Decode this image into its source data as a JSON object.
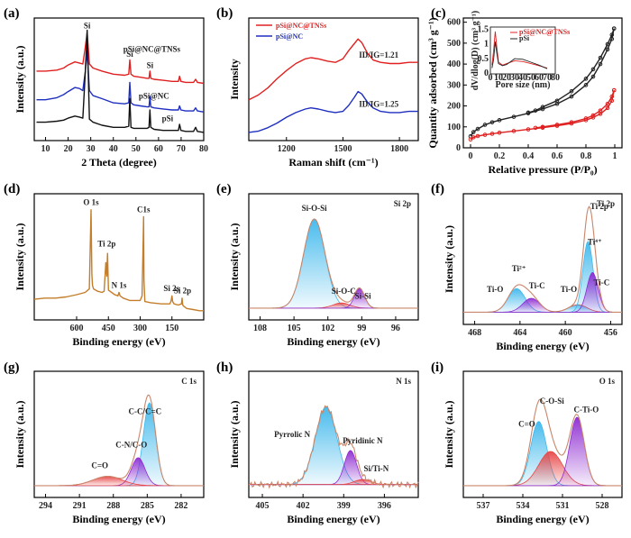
{
  "chart_data": [
    {
      "id": "a",
      "type": "line",
      "panel_label": "(a)",
      "xlabel": "2 Theta (degree)",
      "ylabel": "Intensity (a.u.)",
      "xlim": [
        5,
        80
      ],
      "xticks": [
        10,
        20,
        30,
        40,
        50,
        60,
        70,
        80
      ],
      "x": [
        6,
        10,
        15,
        18,
        20,
        23,
        25,
        26.5,
        27.6,
        28.4,
        29.4,
        31,
        35,
        40,
        45,
        46.8,
        47.3,
        47.8,
        49,
        52,
        55,
        55.8,
        56.2,
        56.6,
        58,
        62,
        66,
        68.8,
        69.3,
        69.9,
        72,
        75.5,
        76.4,
        77.2,
        80
      ],
      "series": [
        {
          "name": "pSi@NC@TNSs",
          "color": "#e02020",
          "values": [
            0.6,
            0.6,
            0.61,
            0.63,
            0.66,
            0.69,
            0.68,
            0.67,
            0.84,
            0.98,
            0.67,
            0.63,
            0.6,
            0.57,
            0.56,
            0.57,
            0.71,
            0.57,
            0.55,
            0.54,
            0.53,
            0.53,
            0.6,
            0.53,
            0.52,
            0.51,
            0.5,
            0.5,
            0.55,
            0.5,
            0.49,
            0.49,
            0.52,
            0.49,
            0.48
          ]
        },
        {
          "name": "pSi@NC",
          "color": "#1f2fbf",
          "values": [
            0.32,
            0.32,
            0.34,
            0.37,
            0.4,
            0.44,
            0.43,
            0.41,
            0.6,
            0.8,
            0.41,
            0.36,
            0.33,
            0.29,
            0.28,
            0.29,
            0.49,
            0.29,
            0.27,
            0.26,
            0.25,
            0.25,
            0.35,
            0.25,
            0.24,
            0.23,
            0.22,
            0.22,
            0.26,
            0.22,
            0.21,
            0.21,
            0.24,
            0.21,
            0.2
          ]
        },
        {
          "name": "pSi",
          "color": "#111111",
          "values": [
            0.1,
            0.1,
            0.11,
            0.12,
            0.14,
            0.16,
            0.15,
            0.14,
            0.6,
            1.0,
            0.13,
            0.1,
            0.07,
            0.05,
            0.05,
            0.06,
            0.33,
            0.05,
            0.04,
            0.04,
            0.04,
            0.05,
            0.22,
            0.05,
            0.03,
            0.02,
            0.02,
            0.02,
            0.08,
            0.02,
            0.01,
            0.01,
            0.05,
            0.01,
            0.0
          ]
        }
      ],
      "annotations": [
        {
          "text": "Si",
          "x": 28.4,
          "y": 1.02
        },
        {
          "text": "Si",
          "x": 47.3,
          "y": 0.74
        },
        {
          "text": "Si",
          "x": 56.2,
          "y": 0.63
        },
        {
          "text": "pSi@NC@TNSs",
          "x": 57,
          "y": 0.79
        },
        {
          "text": "pSi@NC",
          "x": 58,
          "y": 0.33
        },
        {
          "text": "pSi",
          "x": 64,
          "y": 0.11
        }
      ]
    },
    {
      "id": "b",
      "type": "line",
      "panel_label": "(b)",
      "xlabel": "Raman shift (cm⁻¹)",
      "ylabel": "Intensity",
      "xlim": [
        1000,
        1900
      ],
      "xticks": [
        1200,
        1500,
        1800
      ],
      "reversed": true,
      "x": [
        1000,
        1050,
        1100,
        1150,
        1200,
        1250,
        1300,
        1330,
        1370,
        1420,
        1460,
        1500,
        1530,
        1560,
        1580,
        1600,
        1630,
        1660,
        1700,
        1750,
        1800,
        1850,
        1900
      ],
      "series": [
        {
          "name": "pSi@NC@TNSs",
          "color": "#e02020",
          "values": [
            0.3,
            0.34,
            0.4,
            0.48,
            0.55,
            0.61,
            0.65,
            0.66,
            0.65,
            0.63,
            0.62,
            0.65,
            0.72,
            0.78,
            0.82,
            0.79,
            0.7,
            0.64,
            0.62,
            0.61,
            0.61,
            0.62,
            0.62
          ]
        },
        {
          "name": "pSi@NC",
          "color": "#1f2fbf",
          "values": [
            0.02,
            0.03,
            0.06,
            0.1,
            0.15,
            0.19,
            0.22,
            0.23,
            0.22,
            0.2,
            0.19,
            0.2,
            0.25,
            0.32,
            0.37,
            0.35,
            0.28,
            0.23,
            0.2,
            0.19,
            0.19,
            0.2,
            0.2
          ]
        }
      ],
      "legend": [
        {
          "name": "pSi@NC@TNSs",
          "color": "#e02020"
        },
        {
          "name": "pSi@NC",
          "color": "#1f2fbf"
        }
      ],
      "annotations": [
        {
          "text": "I",
          "x": 1690,
          "y": 0.66,
          "ratio": "I_D/I_G=1.21"
        },
        {
          "text": "I",
          "x": 1690,
          "y": 0.24,
          "ratio": "I_D/I_G=1.25"
        }
      ],
      "ratio_labels": [
        "ID/IG=1.21",
        "ID/IG=1.25"
      ]
    },
    {
      "id": "c",
      "type": "line",
      "panel_label": "(c)",
      "xlabel": "Relative pressure (P/P₀)",
      "ylabel": "Quantity adsorbed (cm³ g⁻¹)",
      "xlim": [
        -0.05,
        1.05
      ],
      "ylim": [
        0,
        620
      ],
      "xticks": [
        0.0,
        0.2,
        0.4,
        0.6,
        0.8,
        1.0
      ],
      "yticks": [
        0,
        100,
        200,
        300,
        400,
        500,
        600
      ],
      "series": [
        {
          "name": "pSi (adsorption)",
          "color": "#222222",
          "x": [
            0.0,
            0.02,
            0.05,
            0.1,
            0.15,
            0.2,
            0.3,
            0.4,
            0.5,
            0.6,
            0.7,
            0.8,
            0.85,
            0.9,
            0.95,
            0.98,
            0.995
          ],
          "values": [
            55,
            75,
            90,
            110,
            122,
            132,
            148,
            165,
            185,
            210,
            245,
            300,
            340,
            400,
            470,
            520,
            570
          ]
        },
        {
          "name": "pSi (desorption)",
          "color": "#222222",
          "x": [
            0.995,
            0.98,
            0.95,
            0.9,
            0.85,
            0.8,
            0.7,
            0.6,
            0.5,
            0.45,
            0.4
          ],
          "values": [
            570,
            540,
            495,
            430,
            375,
            330,
            270,
            225,
            195,
            178,
            168
          ]
        },
        {
          "name": "pSi@NC@TNSs (adsorption)",
          "color": "#e02020",
          "x": [
            0.0,
            0.02,
            0.05,
            0.1,
            0.15,
            0.2,
            0.3,
            0.4,
            0.5,
            0.6,
            0.7,
            0.8,
            0.85,
            0.9,
            0.95,
            0.98,
            0.995
          ],
          "values": [
            40,
            50,
            56,
            62,
            67,
            72,
            80,
            88,
            96,
            105,
            116,
            132,
            145,
            162,
            190,
            225,
            275
          ]
        },
        {
          "name": "pSi@NC@TNSs (desorption)",
          "color": "#e02020",
          "x": [
            0.995,
            0.98,
            0.95,
            0.9,
            0.85,
            0.8,
            0.7,
            0.6,
            0.5,
            0.45
          ],
          "values": [
            275,
            245,
            210,
            178,
            155,
            140,
            122,
            110,
            100,
            95
          ]
        }
      ],
      "inset": {
        "type": "line",
        "xlabel": "Pore size (nm)",
        "ylabel": "dV/dlog(D) (cm³ g⁻¹)",
        "xlim": [
          0,
          80
        ],
        "ylim": [
          0,
          1.6
        ],
        "xticks": [
          0,
          10,
          20,
          30,
          40,
          50,
          60,
          70,
          80
        ],
        "yticks": [
          0.0,
          0.5,
          1.0,
          1.5
        ],
        "legend": [
          {
            "name": "pSi@NC@TNSs",
            "color": "#e02020"
          },
          {
            "name": "pSi",
            "color": "#222222"
          }
        ],
        "series": [
          {
            "name": "pSi@NC@TNSs",
            "color": "#e02020",
            "x": [
              2,
              4,
              6,
              8,
              10,
              15,
              20,
              30,
              40,
              50,
              60,
              70
            ],
            "values": [
              0.3,
              0.8,
              1.45,
              0.9,
              0.4,
              0.3,
              0.35,
              0.45,
              0.42,
              0.35,
              0.28,
              0.2
            ]
          },
          {
            "name": "pSi",
            "color": "#222222",
            "x": [
              2,
              4,
              6,
              8,
              10,
              15,
              20,
              30,
              40,
              50,
              60,
              70
            ],
            "values": [
              0.2,
              0.5,
              1.1,
              0.7,
              0.35,
              0.28,
              0.32,
              0.52,
              0.5,
              0.4,
              0.3,
              0.18
            ]
          }
        ]
      }
    },
    {
      "id": "d",
      "type": "line",
      "panel_label": "(d)",
      "xlabel": "Binding energy (eV)",
      "ylabel": "Intensity (a.u.)",
      "xlim": [
        800,
        0
      ],
      "xticks": [
        600,
        450,
        300,
        150
      ],
      "series": [
        {
          "name": "survey",
          "color": "#c47e2a",
          "x": [
            800,
            750,
            700,
            650,
            600,
            560,
            540,
            532,
            528,
            525,
            520,
            500,
            480,
            470,
            462,
            458,
            454,
            450,
            420,
            405,
            400,
            395,
            380,
            350,
            300,
            291,
            286,
            284,
            282,
            278,
            250,
            200,
            180,
            160,
            155,
            150,
            147,
            140,
            120,
            105,
            102,
            99,
            95,
            80,
            50,
            20,
            0
          ],
          "values": [
            0.18,
            0.19,
            0.19,
            0.2,
            0.22,
            0.24,
            0.27,
            0.96,
            0.4,
            0.3,
            0.27,
            0.25,
            0.24,
            0.25,
            0.5,
            0.38,
            0.58,
            0.26,
            0.22,
            0.21,
            0.24,
            0.21,
            0.19,
            0.17,
            0.17,
            0.21,
            0.68,
            0.9,
            0.35,
            0.16,
            0.15,
            0.14,
            0.14,
            0.14,
            0.16,
            0.21,
            0.16,
            0.14,
            0.13,
            0.14,
            0.19,
            0.13,
            0.12,
            0.1,
            0.09,
            0.08,
            0.08
          ]
        }
      ],
      "annotations": [
        {
          "text": "O 1s",
          "x": 532,
          "y": 1.0
        },
        {
          "text": "Ti 2p",
          "x": 458,
          "y": 0.64
        },
        {
          "text": "N 1s",
          "x": 400,
          "y": 0.28
        },
        {
          "text": "C1s",
          "x": 284,
          "y": 0.94
        },
        {
          "text": "Si 2s",
          "x": 152,
          "y": 0.25
        },
        {
          "text": "Si 2p",
          "x": 100,
          "y": 0.23
        }
      ]
    },
    {
      "id": "e",
      "type": "area",
      "panel_label": "(e)",
      "title": "Si 2p",
      "xlabel": "Binding energy (eV)",
      "ylabel": "Intensity (a.u.)",
      "xlim": [
        109,
        94
      ],
      "xticks": [
        108,
        105,
        102,
        99,
        96
      ],
      "peaks": [
        {
          "name": "Si-O-Si",
          "center": 103.2,
          "height": 0.86,
          "sigma": 0.95,
          "color": "#3fb8ec"
        },
        {
          "name": "Si-O-C",
          "center": 100.8,
          "height": 0.05,
          "sigma": 0.75,
          "color": "#e84545"
        },
        {
          "name": "Si-Si",
          "center": 99.2,
          "height": 0.19,
          "sigma": 0.45,
          "color": "#8e2bd1"
        }
      ],
      "baseline": 0.03,
      "annotations": [
        {
          "text": "Si-O-Si",
          "x": 103.2,
          "y": 0.97
        },
        {
          "text": "Si-O-C",
          "x": 100.6,
          "y": 0.17
        },
        {
          "text": "Si-Si",
          "x": 98.9,
          "y": 0.12
        }
      ]
    },
    {
      "id": "f",
      "type": "area",
      "panel_label": "(f)",
      "title": "Ti 2p",
      "xlabel": "Binding energy (eV)",
      "ylabel": "Intensity (a.u.)",
      "xlim": [
        469,
        455
      ],
      "xticks": [
        468,
        464,
        460,
        456
      ],
      "peaks": [
        {
          "name": "Ti-O",
          "center": 464.3,
          "height": 0.22,
          "sigma": 0.75,
          "color": "#3fb8ec"
        },
        {
          "name": "Ti-C",
          "center": 463.0,
          "height": 0.13,
          "sigma": 0.75,
          "color": "#8e2bd1"
        },
        {
          "name": "Ti-O",
          "center": 458.9,
          "height": 0.07,
          "sigma": 0.8,
          "color": "#e84545"
        },
        {
          "name": "Ti4+",
          "center": 458.0,
          "height": 0.66,
          "sigma": 0.45,
          "color": "#3fb8ec"
        },
        {
          "name": "Ti-C",
          "center": 457.6,
          "height": 0.37,
          "sigma": 0.5,
          "color": "#8e2bd1"
        }
      ],
      "baseline": 0.03,
      "annotations": [
        {
          "text": "Ti 2p",
          "x": 457,
          "y": 0.99
        },
        {
          "text": "Ti⁴⁺",
          "x": 457.4,
          "y": 0.66
        },
        {
          "text": "Ti²⁺",
          "x": 464.1,
          "y": 0.41
        },
        {
          "text": "Ti-O",
          "x": 466.2,
          "y": 0.22
        },
        {
          "text": "Ti-C",
          "x": 462.5,
          "y": 0.25
        },
        {
          "text": "Ti-O",
          "x": 459.7,
          "y": 0.22
        },
        {
          "text": "Ti-C",
          "x": 456.8,
          "y": 0.28
        }
      ]
    },
    {
      "id": "g",
      "type": "area",
      "panel_label": "(g)",
      "title": "C 1s",
      "xlabel": "Binding energy (eV)",
      "ylabel": "Intensity (a.u.)",
      "xlim": [
        295,
        280
      ],
      "xticks": [
        294,
        291,
        288,
        285,
        282
      ],
      "peaks": [
        {
          "name": "C-C/C=C",
          "center": 284.8,
          "height": 0.8,
          "sigma": 0.55,
          "color": "#3fb8ec"
        },
        {
          "name": "C-N/C-O",
          "center": 285.8,
          "height": 0.27,
          "sigma": 0.6,
          "color": "#8e2bd1"
        },
        {
          "name": "C=O",
          "center": 288.5,
          "height": 0.09,
          "sigma": 1.3,
          "color": "#e84545"
        }
      ],
      "baseline": 0.03,
      "annotations": [
        {
          "text": "C-C/C=C",
          "x": 285.2,
          "y": 0.72
        },
        {
          "text": "C-N/C-O",
          "x": 286.4,
          "y": 0.4
        },
        {
          "text": "C=O",
          "x": 289.2,
          "y": 0.2
        }
      ]
    },
    {
      "id": "h",
      "type": "area",
      "panel_label": "(h)",
      "title": "N 1s",
      "xlabel": "Binding energy (eV)",
      "ylabel": "Intensity (a.u.)",
      "xlim": [
        406,
        393.5
      ],
      "xticks": [
        405,
        402,
        399,
        396
      ],
      "peaks": [
        {
          "name": "Pyrrolic N",
          "center": 400.3,
          "height": 0.75,
          "sigma": 0.8,
          "color": "#3fb8ec"
        },
        {
          "name": "Pyridinic N",
          "center": 398.5,
          "height": 0.33,
          "sigma": 0.45,
          "color": "#8e2bd1"
        },
        {
          "name": "Si/Ti-N",
          "center": 397.6,
          "height": 0.05,
          "sigma": 0.6,
          "color": "#e84545"
        }
      ],
      "baseline": 0.04,
      "noisy": true,
      "annotations": [
        {
          "text": "Pyrrolic N",
          "x": 402.8,
          "y": 0.5
        },
        {
          "text": "Pyridinic N",
          "x": 397.6,
          "y": 0.44
        },
        {
          "text": "Si/Ti-N",
          "x": 396.6,
          "y": 0.17
        }
      ]
    },
    {
      "id": "i",
      "type": "area",
      "panel_label": "(i)",
      "title": "O 1s",
      "xlabel": "Binding energy (eV)",
      "ylabel": "Intensity (a.u.)",
      "xlim": [
        538.5,
        526.5
      ],
      "xticks": [
        537,
        534,
        531,
        528
      ],
      "peaks": [
        {
          "name": "C=O",
          "center": 532.8,
          "height": 0.62,
          "sigma": 0.6,
          "color": "#3fb8ec"
        },
        {
          "name": "C-O-Si",
          "center": 531.9,
          "height": 0.33,
          "sigma": 0.9,
          "color": "#e84545"
        },
        {
          "name": "C-Ti-O",
          "center": 529.9,
          "height": 0.66,
          "sigma": 0.55,
          "color": "#8e2bd1"
        }
      ],
      "baseline": 0.03,
      "annotations": [
        {
          "text": "C=O",
          "x": 533.7,
          "y": 0.6
        },
        {
          "text": "C-O-Si",
          "x": 531.8,
          "y": 0.82
        },
        {
          "text": "C-Ti-O",
          "x": 529.2,
          "y": 0.74
        }
      ]
    }
  ]
}
